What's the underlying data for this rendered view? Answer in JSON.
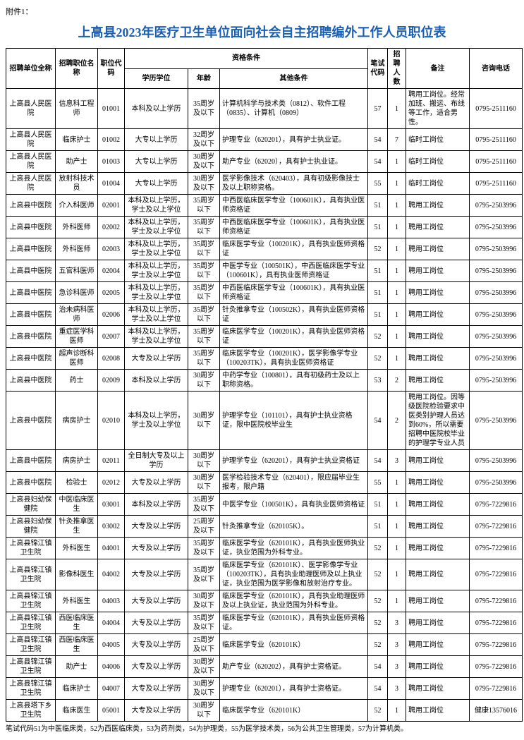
{
  "attachment_label": "附件1：",
  "title": "上高县2023年医疗卫生单位面向社会自主招聘编外工作人员职位表",
  "headers": {
    "unit": "招聘单位全称",
    "position": "招聘职位名称",
    "code": "职位代码",
    "qual_group": "资格条件",
    "edu": "学历学位",
    "age": "年龄",
    "other": "其他条件",
    "exam_code": "笔试代码",
    "num": "招聘人数",
    "note": "备注",
    "phone": "咨询电话"
  },
  "rows": [
    {
      "unit": "上高县人民医院",
      "position": "信息科工程师",
      "code": "01001",
      "edu": "本科及以上学历",
      "age": "35周岁及以下",
      "other": "计算机科学与技术类（0812）、软件工程（0835）、计算机（0809）",
      "exam": "57",
      "num": "1",
      "note": "聘用工岗位。经常加班、搬运、布线等工作，适合男性。",
      "phone": "0795-2511160"
    },
    {
      "unit": "上高县人民医院",
      "position": "临床护士",
      "code": "01002",
      "edu": "大专以上学历",
      "age": "32周岁及以下",
      "other": "护理专业（620201），具有护士执业证。",
      "exam": "54",
      "num": "7",
      "note": "临时工岗位",
      "phone": "0795-2511160"
    },
    {
      "unit": "上高县人民医院",
      "position": "助产士",
      "code": "01003",
      "edu": "大专以上学历",
      "age": "30周岁及以下",
      "other": "助产专业（62020），具有护士执业证。",
      "exam": "54",
      "num": "1",
      "note": "临时工岗位",
      "phone": "0795-2511160"
    },
    {
      "unit": "上高县人民医院",
      "position": "放射科技术员",
      "code": "01004",
      "edu": "大专以上学历",
      "age": "30周岁及以下",
      "other": "医学影像技术（620403），具有初级影像技士及以上职称资格。",
      "exam": "55",
      "num": "1",
      "note": "临时工岗位",
      "phone": "0795-2511160"
    },
    {
      "unit": "上高县中医院",
      "position": "介入科医师",
      "code": "02001",
      "edu": "本科及以上学历，学士及以上学位",
      "age": "35周岁以下",
      "other": "中西医临床医学专业（100601K），具有执业医师资格证",
      "exam": "51",
      "num": "1",
      "note": "聘用工岗位",
      "phone": "0795-2503996"
    },
    {
      "unit": "上高县中医院",
      "position": "外科医师",
      "code": "02002",
      "edu": "本科及以上学历，学士及以上学位",
      "age": "35周岁以下",
      "other": "中西医临床医学专业（100601K），具有执业医师资格证",
      "exam": "51",
      "num": "1",
      "note": "聘用工岗位",
      "phone": "0795-2503996"
    },
    {
      "unit": "上高县中医院",
      "position": "外科医师",
      "code": "02003",
      "edu": "本科及以上学历，学士及以上学位",
      "age": "35周岁以下",
      "other": "临床医学专业（100201K），具有执业医师资格证",
      "exam": "52",
      "num": "1",
      "note": "聘用工岗位",
      "phone": "0795-2503996"
    },
    {
      "unit": "上高县中医院",
      "position": "五官科医师",
      "code": "02004",
      "edu": "本科及以上学历，学士及以上学位",
      "age": "35周岁以下",
      "other": "中医学专业（100501K），中西医临床医学专业（100601K），具有执业医师资格证",
      "exam": "51",
      "num": "1",
      "note": "聘用工岗位",
      "phone": "0795-2503996"
    },
    {
      "unit": "上高县中医院",
      "position": "急诊科医师",
      "code": "02005",
      "edu": "本科及以上学历，学士及以上学位",
      "age": "35周岁以下",
      "other": "中西医临床医学专业（100601K），具有执业医师资格证",
      "exam": "51",
      "num": "1",
      "note": "聘用工岗位",
      "phone": "0795-2503996"
    },
    {
      "unit": "上高县中医院",
      "position": "治未病科医师",
      "code": "02006",
      "edu": "本科及以上学历，学士及以上学位",
      "age": "35周岁以下",
      "other": "针灸推拿专业（100502K），具有执业医师资格证",
      "exam": "51",
      "num": "1",
      "note": "聘用工岗位",
      "phone": "0795-2503996"
    },
    {
      "unit": "上高县中医院",
      "position": "重症医学科医师",
      "code": "02007",
      "edu": "本科及以上学历，学士及以上学位",
      "age": "35周岁以下",
      "other": "临床医学专业（100201K），具有执业医师资格证",
      "exam": "52",
      "num": "1",
      "note": "聘用工岗位",
      "phone": "0795-2503996"
    },
    {
      "unit": "上高县中医院",
      "position": "超声诊断科医师",
      "code": "02008",
      "edu": "大专及以上学历",
      "age": "35周岁以下",
      "other": "临床医学专业（100201K），医学影像学专业（100203TK），具有执业医师资格证",
      "exam": "52",
      "num": "1",
      "note": "聘用工岗位",
      "phone": "0795-2503996"
    },
    {
      "unit": "上高县中医院",
      "position": "药士",
      "code": "02009",
      "edu": "本科及以上学历",
      "age": "30周岁以下",
      "other": "中药学专业（100801），具有初级药士及以上职称资格。",
      "exam": "53",
      "num": "2",
      "note": "聘用工岗位",
      "phone": "0795-2503996"
    },
    {
      "unit": "上高县中医院",
      "position": "病房护士",
      "code": "02010",
      "edu": "本科及以上学历，学士及以上学位",
      "age": "30周岁以下",
      "other": "护理学专业（101101），具有护士执业资格证，限中医院校毕业生",
      "exam": "54",
      "num": "2",
      "note": "聘用工岗位。因等级医院检验要求中医类别护理人员达到60%，所以需要招聘中医院校毕业的护理学专业人员",
      "phone": "0795-2503996"
    },
    {
      "unit": "上高县中医院",
      "position": "病房护士",
      "code": "02011",
      "edu": "全日制大专及以上学历",
      "age": "30周岁以下",
      "other": "护理学专业（620201），具有护士执业资格证",
      "exam": "54",
      "num": "3",
      "note": "聘用工岗位",
      "phone": "0795-2503996"
    },
    {
      "unit": "上高县中医院",
      "position": "检验士",
      "code": "02012",
      "edu": "大专及以上学历",
      "age": "30周岁以下",
      "other": "医学检验技术专业（620401），限应届毕业生报考，限户籍",
      "exam": "55",
      "num": "1",
      "note": "聘用工岗位",
      "phone": "0795-2503996"
    },
    {
      "unit": "上高县妇幼保健院",
      "position": "中医临床医生",
      "code": "03001",
      "edu": "本科及以上学历",
      "age": "35周岁及以下",
      "other": "中医学专业（100501K），具有执业医师资格证",
      "exam": "51",
      "num": "1",
      "note": "聘用工岗位",
      "phone": "0795-7229816"
    },
    {
      "unit": "上高县妇幼保健院",
      "position": "针灸推拿医生",
      "code": "03002",
      "edu": "大专及以上学历",
      "age": "25周岁及以下",
      "other": "针灸推拿专业（620105K）。",
      "exam": "51",
      "num": "1",
      "note": "聘用工岗位",
      "phone": "0795-7229816"
    },
    {
      "unit": "上高县锦江镇卫生院",
      "position": "外科医生",
      "code": "04001",
      "edu": "大专及以上学历",
      "age": "35周岁及以下",
      "other": "临床医学专业（620101K），具有执业医师执业证，执业范围为外科专业。",
      "exam": "52",
      "num": "1",
      "note": "聘用工岗位",
      "phone": "0795-7229816"
    },
    {
      "unit": "上高县锦江镇卫生院",
      "position": "影像科医生",
      "code": "04002",
      "edu": "大专及以上学历",
      "age": "35周岁及以下",
      "other": "临床医学专业（620101K）、医学影像学专业（100203TK），具有执业助理医师及以上执业证，执业范围为医学影像和放射治疗专业。",
      "exam": "52",
      "num": "1",
      "note": "聘用工岗位",
      "phone": "0795-7229816"
    },
    {
      "unit": "上高县锦江镇卫生院",
      "position": "外科医生",
      "code": "04003",
      "edu": "大专及以上学历",
      "age": "30周岁及以下",
      "other": "临床医学专业（620101K），具有执业助理医师及以上执业证，执业范围为外科专业。",
      "exam": "52",
      "num": "1",
      "note": "聘用工岗位",
      "phone": "0795-7229816"
    },
    {
      "unit": "上高县锦江镇卫生院",
      "position": "西医临床医生",
      "code": "04004",
      "edu": "大专及以上学历",
      "age": "35周岁及以下",
      "other": "临床医学专业（620101K），具有执业医师资格证。",
      "exam": "52",
      "num": "3",
      "note": "聘用工岗位",
      "phone": "0795-7229816"
    },
    {
      "unit": "上高县锦江镇卫生院",
      "position": "西医临床医生",
      "code": "04005",
      "edu": "大专及以上学历",
      "age": "25周岁及以下",
      "other": "临床医学专业（620101K）",
      "exam": "52",
      "num": "3",
      "note": "聘用工岗位",
      "phone": "0795-7229816"
    },
    {
      "unit": "上高县锦江镇卫生院",
      "position": "助产士",
      "code": "04006",
      "edu": "大专及以上学历",
      "age": "30周岁及以下",
      "other": "助产专业（620202），具有护士资格证。",
      "exam": "54",
      "num": "3",
      "note": "聘用工岗位",
      "phone": "0795-7229816"
    },
    {
      "unit": "上高县锦江镇卫生院",
      "position": "临床护士",
      "code": "04007",
      "edu": "大专及以上学历",
      "age": "30周岁及以下",
      "other": "护理专业（620201），具有护士资格证。",
      "exam": "54",
      "num": "3",
      "note": "聘用工岗位",
      "phone": "0795-7229816"
    },
    {
      "unit": "上高县塔下乡卫生院",
      "position": "临床医生",
      "code": "05001",
      "edu": "大专及以上学历",
      "age": "30周岁以下",
      "other": "临床医学专业（620101K）",
      "exam": "52",
      "num": "1",
      "note": "聘用工岗位",
      "phone": "健康13576016"
    }
  ],
  "footnote": "笔试代码51为中医临床类，52为西医临床类，53为药剂类，54为护理类，55为医学技术类，56为公共卫生管理类，57为计算机类。",
  "watermark": "健康"
}
